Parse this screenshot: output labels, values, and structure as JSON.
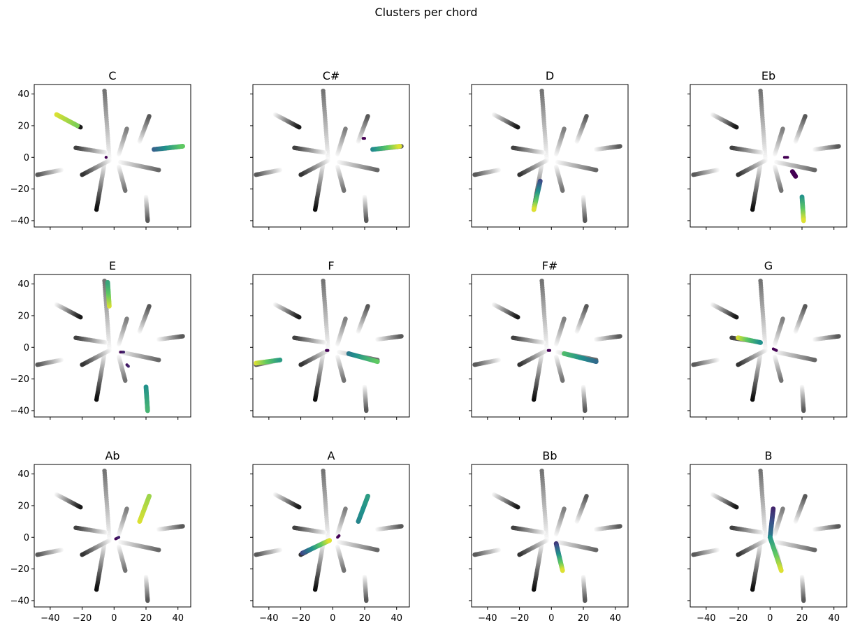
{
  "figure": {
    "title": "Clusters per chord"
  },
  "colors": {
    "highlight_low": "#440154",
    "highlight_mid1": "#3b528b",
    "highlight_mid2": "#21918c",
    "highlight_mid3": "#5ec962",
    "highlight_high": "#fde725",
    "background_dark": "#111111",
    "background_light": "#ffffff"
  },
  "chart_data": {
    "type": "scatter",
    "layout": "3x4 grid of subplots, shared axes",
    "xlim": [
      -50,
      48
    ],
    "ylim": [
      -44,
      46
    ],
    "xticks": [
      -40,
      -20,
      0,
      20,
      40
    ],
    "yticks": [
      -40,
      -20,
      0,
      20,
      40
    ],
    "xtick_labels": [
      "−40",
      "−20",
      "0",
      "20",
      "40"
    ],
    "ytick_labels": [
      "−40",
      "−20",
      "0",
      "20",
      "40"
    ],
    "grid": false,
    "background_arms": [
      {
        "x1": -3,
        "y1": 0,
        "x2": -6,
        "y2": 42,
        "gray_tip": 0.45
      },
      {
        "x1": 3,
        "y1": 2,
        "x2": 8,
        "y2": 18,
        "gray_tip": 0.5
      },
      {
        "x1": 16,
        "y1": 10,
        "x2": 22,
        "y2": 26,
        "gray_tip": 0.35
      },
      {
        "x1": 28,
        "y1": 5,
        "x2": 43,
        "y2": 7,
        "gray_tip": 0.35
      },
      {
        "x1": 4,
        "y1": -3,
        "x2": 28,
        "y2": -8,
        "gray_tip": 0.4
      },
      {
        "x1": 3,
        "y1": -6,
        "x2": 7,
        "y2": -21,
        "gray_tip": 0.45
      },
      {
        "x1": 20,
        "y1": -25,
        "x2": 21,
        "y2": -40,
        "gray_tip": 0.35
      },
      {
        "x1": -6,
        "y1": -4,
        "x2": -11,
        "y2": -33,
        "gray_tip": 0.05
      },
      {
        "x1": -3,
        "y1": -2,
        "x2": -20,
        "y2": -11,
        "gray_tip": 0.2
      },
      {
        "x1": -33,
        "y1": -8,
        "x2": -48,
        "y2": -11,
        "gray_tip": 0.35
      },
      {
        "x1": -5,
        "y1": 3,
        "x2": -24,
        "y2": 6,
        "gray_tip": 0.25
      },
      {
        "x1": -36,
        "y1": 27,
        "x2": -21,
        "y2": 19,
        "gray_tip": 0.1
      }
    ],
    "panels": [
      {
        "title": "C",
        "highlight": [
          {
            "x1": -36,
            "y1": 27,
            "x2": -23,
            "y2": 20,
            "c1": 0.95,
            "c2": 0.8
          },
          {
            "x1": 25,
            "y1": 5,
            "x2": 43,
            "y2": 7,
            "c1": 0.3,
            "c2": 0.75
          },
          {
            "x1": -5,
            "y1": 0,
            "x2": -5,
            "y2": 0,
            "c1": 0,
            "c2": 0
          }
        ]
      },
      {
        "title": "C#",
        "highlight": [
          {
            "x1": 25,
            "y1": 5,
            "x2": 42,
            "y2": 7,
            "c1": 0.45,
            "c2": 0.95
          },
          {
            "x1": 19,
            "y1": 12,
            "x2": 20,
            "y2": 12,
            "c1": 0,
            "c2": 0
          }
        ]
      },
      {
        "title": "D",
        "highlight": [
          {
            "x1": -7,
            "y1": -15,
            "x2": -11,
            "y2": -33,
            "c1": 0.2,
            "c2": 0.95
          }
        ]
      },
      {
        "title": "Eb",
        "highlight": [
          {
            "x1": 20,
            "y1": -25,
            "x2": 21,
            "y2": -40,
            "c1": 0.5,
            "c2": 0.95
          },
          {
            "x1": 9,
            "y1": 0,
            "x2": 11,
            "y2": 0,
            "c1": 0,
            "c2": 0
          },
          {
            "x1": 14,
            "y1": -9,
            "x2": 16,
            "y2": -12,
            "c1": 0,
            "c2": 0
          }
        ]
      },
      {
        "title": "E",
        "highlight": [
          {
            "x1": -3,
            "y1": 26,
            "x2": -4,
            "y2": 41,
            "c1": 0.95,
            "c2": 0.6
          },
          {
            "x1": 20,
            "y1": -25,
            "x2": 21,
            "y2": -40,
            "c1": 0.5,
            "c2": 0.65
          },
          {
            "x1": 4,
            "y1": -3,
            "x2": 6,
            "y2": -3,
            "c1": 0,
            "c2": 0.1
          },
          {
            "x1": 8,
            "y1": -11,
            "x2": 9,
            "y2": -12,
            "c1": 0.05,
            "c2": 0.1
          }
        ]
      },
      {
        "title": "F",
        "highlight": [
          {
            "x1": -48,
            "y1": -10,
            "x2": -33,
            "y2": -8,
            "c1": 0.95,
            "c2": 0.55
          },
          {
            "x1": 10,
            "y1": -4,
            "x2": 28,
            "y2": -9,
            "c1": 0.4,
            "c2": 0.75
          },
          {
            "x1": -3,
            "y1": -2,
            "x2": -4,
            "y2": -2,
            "c1": 0,
            "c2": 0
          }
        ]
      },
      {
        "title": "F#",
        "highlight": [
          {
            "x1": 8,
            "y1": -4,
            "x2": 28,
            "y2": -9,
            "c1": 0.7,
            "c2": 0.35
          },
          {
            "x1": -2,
            "y1": -2,
            "x2": -1,
            "y2": -2,
            "c1": 0,
            "c2": 0
          }
        ]
      },
      {
        "title": "G",
        "highlight": [
          {
            "x1": -20,
            "y1": 6,
            "x2": -6,
            "y2": 3,
            "c1": 0.95,
            "c2": 0.5
          },
          {
            "x1": 2,
            "y1": -1,
            "x2": 4,
            "y2": -2,
            "c1": 0,
            "c2": 0
          }
        ]
      },
      {
        "title": "Ab",
        "highlight": [
          {
            "x1": 16,
            "y1": 10,
            "x2": 22,
            "y2": 26,
            "c1": 0.95,
            "c2": 0.85
          },
          {
            "x1": 1,
            "y1": -1,
            "x2": 3,
            "y2": 0,
            "c1": 0,
            "c2": 0.1
          }
        ]
      },
      {
        "title": "A",
        "highlight": [
          {
            "x1": -19,
            "y1": -10,
            "x2": -2,
            "y2": -2,
            "c1": 0.2,
            "c2": 0.95
          },
          {
            "x1": 16,
            "y1": 10,
            "x2": 22,
            "y2": 26,
            "c1": 0.45,
            "c2": 0.55
          },
          {
            "x1": 3,
            "y1": 0,
            "x2": 4,
            "y2": 1,
            "c1": 0,
            "c2": 0
          }
        ]
      },
      {
        "title": "Bb",
        "highlight": [
          {
            "x1": 3,
            "y1": -4,
            "x2": 7,
            "y2": -21,
            "c1": 0.15,
            "c2": 0.95
          }
        ]
      },
      {
        "title": "B",
        "highlight": [
          {
            "x1": 2,
            "y1": 18,
            "x2": 0,
            "y2": 0,
            "c1": 0.1,
            "c2": 0.4
          },
          {
            "x1": 0,
            "y1": 0,
            "x2": 7,
            "y2": -21,
            "c1": 0.5,
            "c2": 0.95
          }
        ]
      }
    ]
  }
}
